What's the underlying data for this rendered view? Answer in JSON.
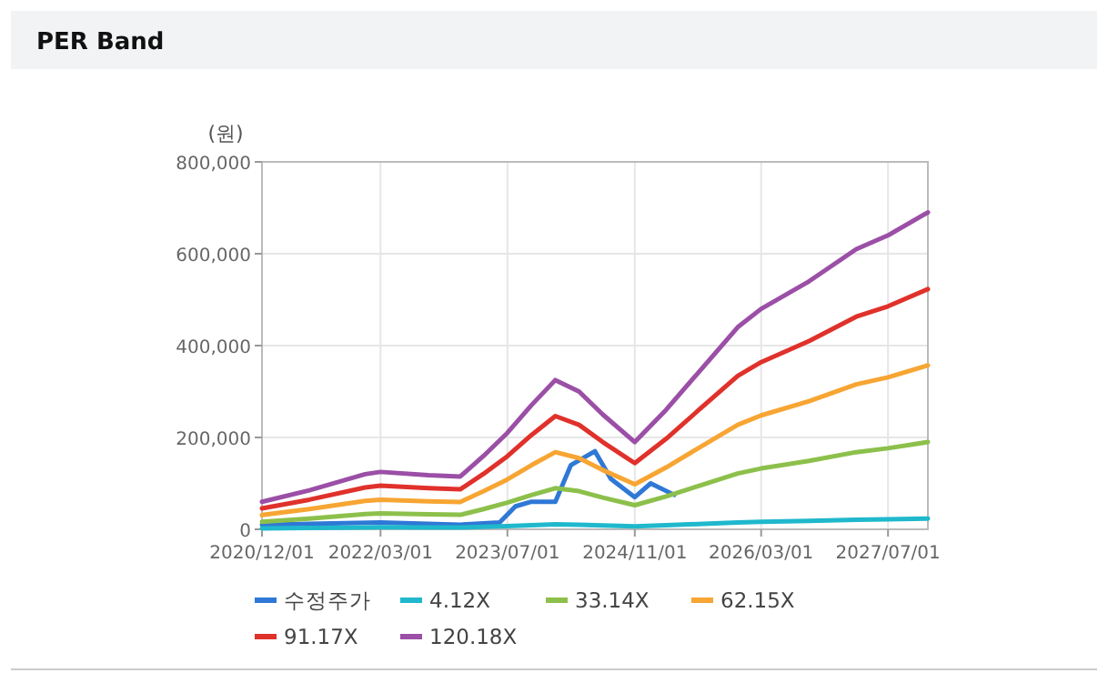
{
  "chart_data": {
    "type": "line",
    "title": "PER Band",
    "ylabel": "(원)",
    "x": [
      "2020-12",
      "2021-06",
      "2022-01",
      "2022-03",
      "2022-09",
      "2023-01",
      "2023-04",
      "2023-07",
      "2023-10",
      "2024-01",
      "2024-04",
      "2024-07",
      "2024-11",
      "2025-03",
      "2025-07",
      "2025-12",
      "2026-03",
      "2026-09",
      "2027-03",
      "2027-07",
      "2027-12"
    ],
    "series": [
      {
        "name": "수정주가",
        "color": "#2f78d6",
        "x": [
          "2020-12",
          "2021-06",
          "2022-03",
          "2022-09",
          "2023-01",
          "2023-06",
          "2023-08",
          "2023-10",
          "2024-01",
          "2024-03",
          "2024-06",
          "2024-08",
          "2024-11",
          "2025-01",
          "2025-04"
        ],
        "values": [
          10000,
          12000,
          15000,
          12000,
          10000,
          15000,
          50000,
          60000,
          60000,
          140000,
          170000,
          110000,
          70000,
          100000,
          75000
        ]
      },
      {
        "name": "4.12X",
        "color": "#1fb8cc",
        "values": [
          2000,
          3000,
          4000,
          4500,
          4000,
          4000,
          5500,
          7000,
          9000,
          11000,
          10000,
          8500,
          6500,
          9000,
          11500,
          15000,
          16500,
          18500,
          21000,
          22000,
          23500
        ]
      },
      {
        "name": "33.14X",
        "color": "#8cc04b",
        "values": [
          16500,
          23500,
          33000,
          34500,
          32500,
          31500,
          44000,
          58000,
          74500,
          89500,
          83000,
          69000,
          52500,
          71500,
          94000,
          121500,
          132500,
          149000,
          168000,
          176500,
          190000
        ]
      },
      {
        "name": "62.15X",
        "color": "#f7a533",
        "values": [
          31000,
          44000,
          62000,
          64500,
          61000,
          59500,
          83000,
          108500,
          139500,
          168000,
          155000,
          129000,
          98000,
          134500,
          176000,
          227500,
          248000,
          279000,
          315500,
          331000,
          357000
        ]
      },
      {
        "name": "91.17X",
        "color": "#e0312b",
        "values": [
          45500,
          64500,
          91000,
          95000,
          89500,
          87000,
          121000,
          159000,
          205000,
          246500,
          227500,
          190000,
          144000,
          197000,
          258000,
          334000,
          364000,
          410000,
          463000,
          485500,
          523000
        ]
      },
      {
        "name": "120.18X",
        "color": "#9b4fa6",
        "values": [
          60000,
          85000,
          120000,
          125000,
          118000,
          115000,
          160000,
          210000,
          270000,
          325000,
          300000,
          250000,
          190000,
          260000,
          340000,
          440000,
          480000,
          540000,
          610000,
          640000,
          690000
        ]
      }
    ],
    "xlim": [
      "2020-12",
      "2027-12"
    ],
    "xticks": [
      {
        "value": "2020-12",
        "label": "2020/12/01"
      },
      {
        "value": "2022-03",
        "label": "2022/03/01"
      },
      {
        "value": "2023-07",
        "label": "2023/07/01"
      },
      {
        "value": "2024-11",
        "label": "2024/11/01"
      },
      {
        "value": "2026-03",
        "label": "2026/03/01"
      },
      {
        "value": "2027-07",
        "label": "2027/07/01"
      }
    ],
    "ylim": [
      0,
      800000
    ],
    "yticks": [
      {
        "value": 0,
        "label": "0"
      },
      {
        "value": 200000,
        "label": "200,000"
      },
      {
        "value": 400000,
        "label": "400,000"
      },
      {
        "value": 600000,
        "label": "600,000"
      },
      {
        "value": 800000,
        "label": "800,000"
      }
    ],
    "grid": true,
    "legend": "bottom",
    "marker": "none",
    "line_style": "solid"
  }
}
